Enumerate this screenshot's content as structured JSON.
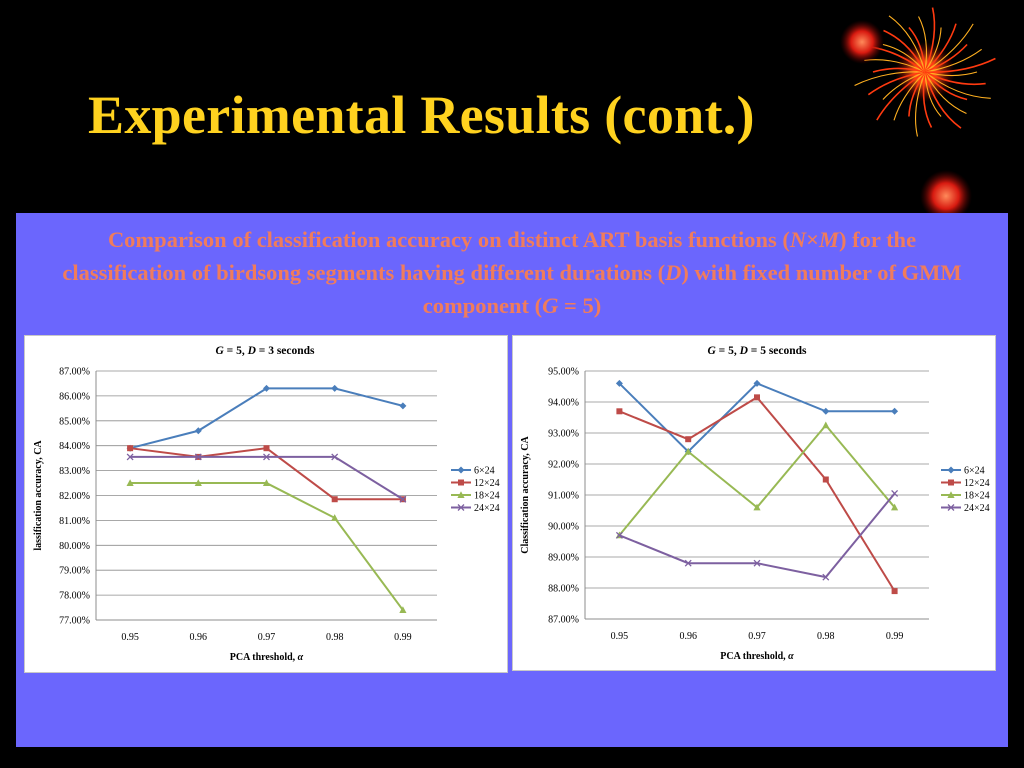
{
  "slide": {
    "title": "Experimental Results (cont.)",
    "caption_parts": [
      {
        "t": "Comparison of classification accuracy on distinct ART basis functions (",
        "i": false
      },
      {
        "t": "N",
        "i": true
      },
      {
        "t": "×",
        "i": false
      },
      {
        "t": "M",
        "i": true
      },
      {
        "t": ") for the classification of birdsong segments having different durations (",
        "i": false
      },
      {
        "t": "D",
        "i": true
      },
      {
        "t": ") with fixed number of GMM component (",
        "i": false
      },
      {
        "t": "G",
        "i": true
      },
      {
        "t": " = 5)",
        "i": false
      }
    ],
    "colors": {
      "background": "#000000",
      "title": "#ffd21f",
      "panel": "#6b66fd",
      "caption": "#f07c5c"
    }
  },
  "chart_data": [
    {
      "type": "line",
      "title_parts": [
        {
          "t": "G",
          "i": true
        },
        {
          "t": " = 5, ",
          "i": false
        },
        {
          "t": "D",
          "i": true
        },
        {
          "t": " = 3 seconds",
          "i": false
        }
      ],
      "xlabel_parts": [
        {
          "t": "PCA threshold, ",
          "i": false
        },
        {
          "t": "α",
          "i": true
        }
      ],
      "ylabel": "lassification accuracy, CA",
      "categories": [
        "0.95",
        "0.96",
        "0.97",
        "0.98",
        "0.99"
      ],
      "y_ticks": [
        "77.00%",
        "78.00%",
        "79.00%",
        "80.00%",
        "81.00%",
        "82.00%",
        "83.00%",
        "84.00%",
        "85.00%",
        "86.00%",
        "87.00%"
      ],
      "ylim": [
        77,
        87
      ],
      "legend_position": "right",
      "grid": true,
      "series": [
        {
          "name": "6×24",
          "color": "#4a7ebb",
          "marker": "diamond",
          "values": [
            83.9,
            84.6,
            86.3,
            86.3,
            85.6
          ]
        },
        {
          "name": "12×24",
          "color": "#be4b48",
          "marker": "square",
          "values": [
            83.9,
            83.55,
            83.9,
            81.85,
            81.85
          ]
        },
        {
          "name": "18×24",
          "color": "#98b954",
          "marker": "triangle",
          "values": [
            82.5,
            82.5,
            82.5,
            81.1,
            77.4
          ]
        },
        {
          "name": "24×24",
          "color": "#7d60a0",
          "marker": "x",
          "values": [
            83.55,
            83.55,
            83.55,
            83.55,
            81.85
          ]
        }
      ]
    },
    {
      "type": "line",
      "title_parts": [
        {
          "t": "G",
          "i": true
        },
        {
          "t": " = 5, ",
          "i": false
        },
        {
          "t": "D",
          "i": true
        },
        {
          "t": " = 5 seconds",
          "i": false
        }
      ],
      "xlabel_parts": [
        {
          "t": "PCA threshold, ",
          "i": false
        },
        {
          "t": "α",
          "i": true
        }
      ],
      "ylabel": "Classification accuracy, CA",
      "categories": [
        "0.95",
        "0.96",
        "0.97",
        "0.98",
        "0.99"
      ],
      "y_ticks": [
        "87.00%",
        "88.00%",
        "89.00%",
        "90.00%",
        "91.00%",
        "92.00%",
        "93.00%",
        "94.00%",
        "95.00%"
      ],
      "ylim": [
        87,
        95
      ],
      "legend_position": "right",
      "grid": true,
      "series": [
        {
          "name": "6×24",
          "color": "#4a7ebb",
          "marker": "diamond",
          "values": [
            94.6,
            92.4,
            94.6,
            93.7,
            93.7
          ]
        },
        {
          "name": "12×24",
          "color": "#be4b48",
          "marker": "square",
          "values": [
            93.7,
            92.8,
            94.15,
            91.5,
            87.9
          ]
        },
        {
          "name": "18×24",
          "color": "#98b954",
          "marker": "triangle",
          "values": [
            89.7,
            92.4,
            90.6,
            93.25,
            90.6
          ]
        },
        {
          "name": "24×24",
          "color": "#7d60a0",
          "marker": "x",
          "values": [
            89.7,
            88.8,
            88.8,
            88.35,
            91.05
          ]
        }
      ]
    }
  ]
}
